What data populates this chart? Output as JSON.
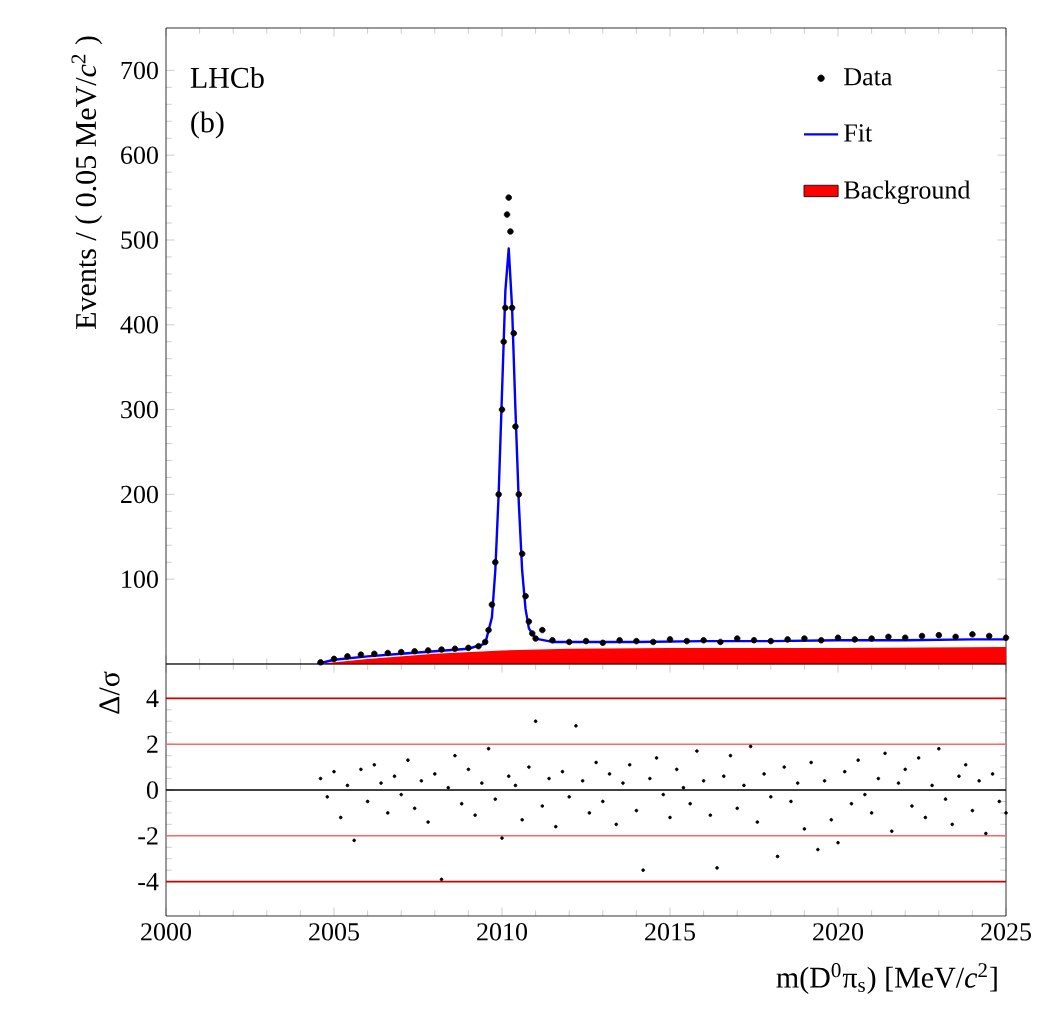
{
  "chart_data": [
    {
      "type": "line",
      "ylabel": "Events / ( 0.05 MeV/*c*$^{2}$ )",
      "annotations": [
        "LHCb",
        "(b)"
      ],
      "xlim": [
        2000,
        2025
      ],
      "ylim": [
        0,
        750
      ],
      "xticks": [
        2000,
        2005,
        2010,
        2015,
        2020,
        2025
      ],
      "yticks": [
        100,
        200,
        300,
        400,
        500,
        600,
        700
      ],
      "tick_labels": "y",
      "legend": "top right",
      "series": [
        {
          "name": "Data",
          "type": "scatter",
          "marker": "circle",
          "color": "#000000",
          "x": [
            2004.6,
            2005.0,
            2005.4,
            2005.8,
            2006.2,
            2006.6,
            2007.0,
            2007.4,
            2007.8,
            2008.2,
            2008.6,
            2009.0,
            2009.3,
            2009.5,
            2009.6,
            2009.7,
            2009.8,
            2009.9,
            2010.0,
            2010.05,
            2010.1,
            2010.15,
            2010.2,
            2010.25,
            2010.3,
            2010.35,
            2010.4,
            2010.5,
            2010.6,
            2010.7,
            2010.8,
            2010.9,
            2011.0,
            2011.2,
            2011.5,
            2012.0,
            2012.5,
            2013.0,
            2013.5,
            2014.0,
            2014.5,
            2015.0,
            2015.5,
            2016.0,
            2016.5,
            2017.0,
            2017.5,
            2018.0,
            2018.5,
            2019.0,
            2019.5,
            2020.0,
            2020.5,
            2021.0,
            2021.5,
            2022.0,
            2022.5,
            2023.0,
            2023.5,
            2024.0,
            2024.5,
            2025.0
          ],
          "values": [
            2,
            6,
            9,
            11,
            12,
            13,
            14,
            15,
            16,
            17,
            18,
            19,
            21,
            26,
            40,
            70,
            120,
            200,
            300,
            380,
            420,
            530,
            550,
            510,
            420,
            390,
            280,
            200,
            130,
            80,
            50,
            36,
            30,
            40,
            28,
            26,
            27,
            25,
            28,
            27,
            26,
            29,
            27,
            28,
            26,
            30,
            28,
            27,
            29,
            30,
            28,
            31,
            29,
            30,
            32,
            31,
            33,
            34,
            32,
            35,
            33,
            31
          ]
        },
        {
          "name": "Fit",
          "type": "line",
          "color": "#0000ff",
          "x": [
            2004.5,
            2005,
            2006,
            2007,
            2008,
            2009,
            2009.5,
            2009.7,
            2009.8,
            2009.9,
            2010.0,
            2010.1,
            2010.2,
            2010.3,
            2010.4,
            2010.5,
            2010.6,
            2010.7,
            2010.8,
            2011.0,
            2011.5,
            2012,
            2014,
            2016,
            2018,
            2020,
            2022,
            2024,
            2025
          ],
          "values": [
            0,
            5,
            9,
            12,
            15,
            18,
            24,
            55,
            110,
            200,
            320,
            440,
            490,
            420,
            300,
            190,
            110,
            65,
            42,
            30,
            26,
            26,
            26,
            27,
            27,
            28,
            28,
            29,
            29
          ]
        },
        {
          "name": "Background",
          "type": "area",
          "color": "#ff0000",
          "x": [
            2004.5,
            2006,
            2008,
            2010,
            2012,
            2015,
            2020,
            2025
          ],
          "values": [
            0,
            6,
            12,
            16,
            18,
            19,
            19,
            20
          ]
        }
      ]
    },
    {
      "type": "scatter",
      "xlabel": "m(D$^{0}$π$_{s}$) [MeV/*c*$^{2}$]",
      "ylabel": "Δ/σ",
      "xlim": [
        2000,
        2025
      ],
      "ylim": [
        -5.5,
        5.5
      ],
      "xticks": [
        2000,
        2005,
        2010,
        2015,
        2020,
        2025
      ],
      "yticks": [
        -4,
        -2,
        0,
        2,
        4
      ],
      "marker": "circle",
      "ref_lines": [
        {
          "axis": "y",
          "value": 4,
          "color": "#cc0000"
        },
        {
          "axis": "y",
          "value": 2,
          "color": "#ff6666"
        },
        {
          "axis": "y",
          "value": 0,
          "color": "#000000"
        },
        {
          "axis": "y",
          "value": -2,
          "color": "#ff6666"
        },
        {
          "axis": "y",
          "value": -4,
          "color": "#cc0000"
        }
      ],
      "series": [
        {
          "color": "#000000",
          "x": [
            2004.6,
            2004.8,
            2005.0,
            2005.2,
            2005.4,
            2005.6,
            2005.8,
            2006.0,
            2006.2,
            2006.4,
            2006.6,
            2006.8,
            2007.0,
            2007.2,
            2007.4,
            2007.6,
            2007.8,
            2008.0,
            2008.2,
            2008.4,
            2008.6,
            2008.8,
            2009.0,
            2009.2,
            2009.4,
            2009.6,
            2009.8,
            2010.0,
            2010.2,
            2010.4,
            2010.6,
            2010.8,
            2011.0,
            2011.2,
            2011.4,
            2011.6,
            2011.8,
            2012.0,
            2012.2,
            2012.4,
            2012.6,
            2012.8,
            2013.0,
            2013.2,
            2013.4,
            2013.6,
            2013.8,
            2014.0,
            2014.2,
            2014.4,
            2014.6,
            2014.8,
            2015.0,
            2015.2,
            2015.4,
            2015.6,
            2015.8,
            2016.0,
            2016.2,
            2016.4,
            2016.6,
            2016.8,
            2017.0,
            2017.2,
            2017.4,
            2017.6,
            2017.8,
            2018.0,
            2018.2,
            2018.4,
            2018.6,
            2018.8,
            2019.0,
            2019.2,
            2019.4,
            2019.6,
            2019.8,
            2020.0,
            2020.2,
            2020.4,
            2020.6,
            2020.8,
            2021.0,
            2021.2,
            2021.4,
            2021.6,
            2021.8,
            2022.0,
            2022.2,
            2022.4,
            2022.6,
            2022.8,
            2023.0,
            2023.2,
            2023.4,
            2023.6,
            2023.8,
            2024.0,
            2024.2,
            2024.4,
            2024.6,
            2024.8,
            2025.0
          ],
          "values": [
            0.5,
            -0.3,
            0.8,
            -1.2,
            0.2,
            -2.2,
            0.9,
            -0.5,
            1.1,
            0.3,
            -1.0,
            0.6,
            -0.2,
            1.3,
            -0.8,
            0.4,
            -1.4,
            0.7,
            -3.9,
            0.1,
            1.5,
            -0.6,
            0.9,
            -1.1,
            0.3,
            1.8,
            -0.4,
            -2.1,
            0.6,
            0.2,
            -1.3,
            1.0,
            3.0,
            -0.7,
            0.5,
            -1.6,
            0.8,
            -0.3,
            2.8,
            0.4,
            -1.0,
            1.2,
            -0.5,
            0.7,
            -1.5,
            0.3,
            1.1,
            -0.9,
            -3.5,
            0.5,
            1.4,
            -0.2,
            -1.2,
            0.9,
            0.1,
            -0.6,
            1.7,
            0.4,
            -1.1,
            -3.4,
            0.6,
            1.5,
            -0.8,
            0.2,
            1.9,
            -1.4,
            0.7,
            -0.3,
            -2.9,
            1.0,
            -0.5,
            0.3,
            -1.7,
            1.2,
            -2.6,
            0.4,
            -1.3,
            -2.3,
            0.8,
            -0.6,
            1.3,
            -0.2,
            -1.0,
            0.5,
            1.6,
            -1.8,
            0.3,
            0.9,
            -0.7,
            1.4,
            -1.2,
            0.2,
            1.8,
            -0.4,
            -1.5,
            0.6,
            1.1,
            -0.9,
            0.4,
            -1.9,
            0.7,
            -0.5,
            -1.0
          ]
        }
      ]
    }
  ]
}
